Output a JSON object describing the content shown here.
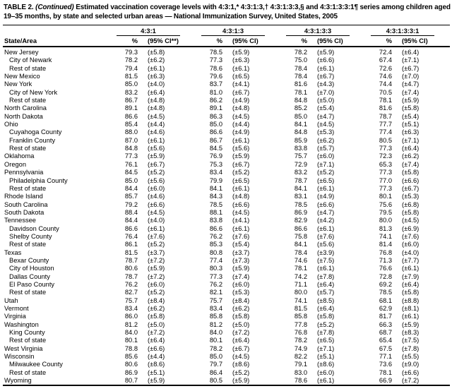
{
  "title": {
    "prefix": "TABLE 2.",
    "continued": "(Continued)",
    "rest": "Estimated vaccination coverage levels with 4:3:1,* 4:3:1:3,† 4:3:1:3:3,§ and 4:3:1:3:3:1¶ series among children aged 19–35 months, by state and selected urban areas — National Immunization Survey, United States, 2005"
  },
  "table": {
    "row_header": "State/Area",
    "groups": [
      {
        "label": "4:3:1",
        "pct": "%",
        "ci": "(95% CI**)"
      },
      {
        "label": "4:3:1:3",
        "pct": "%",
        "ci": "(95% CI)"
      },
      {
        "label": "4:3:1:3:3",
        "pct": "%",
        "ci": "(95% CI)"
      },
      {
        "label": "4:3:1:3:3:1",
        "pct": "%",
        "ci": "(95% CI)"
      }
    ],
    "rows": [
      {
        "area": "New Jersey",
        "indent": false,
        "values": [
          "79.3",
          "(±5.8)",
          "78.5",
          "(±5.9)",
          "78.2",
          "(±5.9)",
          "72.4",
          "(±6.4)"
        ]
      },
      {
        "area": "City of Newark",
        "indent": true,
        "values": [
          "78.2",
          "(±6.2)",
          "77.3",
          "(±6.3)",
          "75.0",
          "(±6.6)",
          "67.4",
          "(±7.1)"
        ]
      },
      {
        "area": "Rest of state",
        "indent": true,
        "values": [
          "79.4",
          "(±6.1)",
          "78.6",
          "(±6.1)",
          "78.4",
          "(±6.1)",
          "72.6",
          "(±6.7)"
        ]
      },
      {
        "area": "New Mexico",
        "indent": false,
        "values": [
          "81.5",
          "(±6.3)",
          "79.6",
          "(±6.5)",
          "78.4",
          "(±6.7)",
          "74.6",
          "(±7.0)"
        ]
      },
      {
        "area": "New York",
        "indent": false,
        "values": [
          "85.0",
          "(±4.0)",
          "83.7",
          "(±4.1)",
          "81.6",
          "(±4.3)",
          "74.4",
          "(±4.7)"
        ]
      },
      {
        "area": "City of New York",
        "indent": true,
        "values": [
          "83.2",
          "(±6.4)",
          "81.0",
          "(±6.7)",
          "78.1",
          "(±7.0)",
          "70.5",
          "(±7.4)"
        ]
      },
      {
        "area": "Rest of state",
        "indent": true,
        "values": [
          "86.7",
          "(±4.8)",
          "86.2",
          "(±4.9)",
          "84.8",
          "(±5.0)",
          "78.1",
          "(±5.9)"
        ]
      },
      {
        "area": "North Carolina",
        "indent": false,
        "values": [
          "89.1",
          "(±4.8)",
          "89.1",
          "(±4.8)",
          "85.2",
          "(±5.4)",
          "81.6",
          "(±5.8)"
        ]
      },
      {
        "area": "North Dakota",
        "indent": false,
        "values": [
          "86.6",
          "(±4.5)",
          "86.3",
          "(±4.5)",
          "85.0",
          "(±4.7)",
          "78.7",
          "(±5.4)"
        ]
      },
      {
        "area": "Ohio",
        "indent": false,
        "values": [
          "85.4",
          "(±4.4)",
          "85.0",
          "(±4.4)",
          "84.1",
          "(±4.5)",
          "77.7",
          "(±5.1)"
        ]
      },
      {
        "area": "Cuyahoga County",
        "indent": true,
        "values": [
          "88.0",
          "(±4.6)",
          "86.6",
          "(±4.9)",
          "84.8",
          "(±5.3)",
          "77.4",
          "(±6.3)"
        ]
      },
      {
        "area": "Franklin County",
        "indent": true,
        "values": [
          "87.0",
          "(±6.1)",
          "86.7",
          "(±6.1)",
          "85.9",
          "(±6.2)",
          "80.5",
          "(±7.1)"
        ]
      },
      {
        "area": "Rest of state",
        "indent": true,
        "values": [
          "84.8",
          "(±5.6)",
          "84.5",
          "(±5.6)",
          "83.8",
          "(±5.7)",
          "77.3",
          "(±6.4)"
        ]
      },
      {
        "area": "Oklahoma",
        "indent": false,
        "values": [
          "77.3",
          "(±5.9)",
          "76.9",
          "(±5.9)",
          "75.7",
          "(±6.0)",
          "72.3",
          "(±6.2)"
        ]
      },
      {
        "area": "Oregon",
        "indent": false,
        "values": [
          "76.1",
          "(±6.7)",
          "75.3",
          "(±6.7)",
          "72.9",
          "(±7.1)",
          "65.3",
          "(±7.4)"
        ]
      },
      {
        "area": "Pennsylvania",
        "indent": false,
        "values": [
          "84.5",
          "(±5.2)",
          "83.4",
          "(±5.2)",
          "83.2",
          "(±5.2)",
          "77.3",
          "(±5.8)"
        ]
      },
      {
        "area": "Philadelphia County",
        "indent": true,
        "values": [
          "85.0",
          "(±5.6)",
          "79.9",
          "(±6.5)",
          "78.7",
          "(±6.5)",
          "77.0",
          "(±6.6)"
        ]
      },
      {
        "area": "Rest of state",
        "indent": true,
        "values": [
          "84.4",
          "(±6.0)",
          "84.1",
          "(±6.1)",
          "84.1",
          "(±6.1)",
          "77.3",
          "(±6.7)"
        ]
      },
      {
        "area": "Rhode Island",
        "indent": false,
        "values": [
          "85.7",
          "(±4.6)",
          "84.3",
          "(±4.8)",
          "83.1",
          "(±4.9)",
          "80.1",
          "(±5.3)"
        ]
      },
      {
        "area": "South Carolina",
        "indent": false,
        "values": [
          "79.2",
          "(±6.6)",
          "78.5",
          "(±6.6)",
          "78.5",
          "(±6.6)",
          "75.6",
          "(±6.8)"
        ]
      },
      {
        "area": "South Dakota",
        "indent": false,
        "values": [
          "88.4",
          "(±4.5)",
          "88.1",
          "(±4.5)",
          "86.9",
          "(±4.7)",
          "79.5",
          "(±5.8)"
        ]
      },
      {
        "area": "Tennessee",
        "indent": false,
        "values": [
          "84.4",
          "(±4.0)",
          "83.8",
          "(±4.1)",
          "82.9",
          "(±4.2)",
          "80.0",
          "(±4.5)"
        ]
      },
      {
        "area": "Davidson County",
        "indent": true,
        "values": [
          "86.6",
          "(±6.1)",
          "86.6",
          "(±6.1)",
          "86.6",
          "(±6.1)",
          "81.3",
          "(±6.9)"
        ]
      },
      {
        "area": "Shelby County",
        "indent": true,
        "values": [
          "76.4",
          "(±7.6)",
          "76.2",
          "(±7.6)",
          "75.8",
          "(±7.6)",
          "74.1",
          "(±7.6)"
        ]
      },
      {
        "area": "Rest of state",
        "indent": true,
        "values": [
          "86.1",
          "(±5.2)",
          "85.3",
          "(±5.4)",
          "84.1",
          "(±5.6)",
          "81.4",
          "(±6.0)"
        ]
      },
      {
        "area": "Texas",
        "indent": false,
        "values": [
          "81.5",
          "(±3.7)",
          "80.8",
          "(±3.7)",
          "78.4",
          "(±3.9)",
          "76.8",
          "(±4.0)"
        ]
      },
      {
        "area": "Bexar County",
        "indent": true,
        "values": [
          "78.7",
          "(±7.2)",
          "77.4",
          "(±7.3)",
          "74.6",
          "(±7.5)",
          "71.3",
          "(±7.7)"
        ]
      },
      {
        "area": "City of Houston",
        "indent": true,
        "values": [
          "80.6",
          "(±5.9)",
          "80.3",
          "(±5.9)",
          "78.1",
          "(±6.1)",
          "76.6",
          "(±6.1)"
        ]
      },
      {
        "area": "Dallas County",
        "indent": true,
        "values": [
          "78.7",
          "(±7.2)",
          "77.3",
          "(±7.4)",
          "74.2",
          "(±7.8)",
          "72.8",
          "(±7.9)"
        ]
      },
      {
        "area": "El Paso County",
        "indent": true,
        "values": [
          "76.2",
          "(±6.0)",
          "76.2",
          "(±6.0)",
          "71.1",
          "(±6.4)",
          "69.2",
          "(±6.4)"
        ]
      },
      {
        "area": "Rest of state",
        "indent": true,
        "values": [
          "82.7",
          "(±5.2)",
          "82.1",
          "(±5.3)",
          "80.0",
          "(±5.7)",
          "78.5",
          "(±5.8)"
        ]
      },
      {
        "area": "Utah",
        "indent": false,
        "values": [
          "75.7",
          "(±8.4)",
          "75.7",
          "(±8.4)",
          "74.1",
          "(±8.5)",
          "68.1",
          "(±8.8)"
        ]
      },
      {
        "area": "Vermont",
        "indent": false,
        "values": [
          "83.4",
          "(±6.2)",
          "83.4",
          "(±6.2)",
          "81.5",
          "(±6.4)",
          "62.9",
          "(±8.1)"
        ]
      },
      {
        "area": "Virginia",
        "indent": false,
        "values": [
          "86.0",
          "(±5.8)",
          "85.8",
          "(±5.8)",
          "85.8",
          "(±5.8)",
          "81.7",
          "(±6.1)"
        ]
      },
      {
        "area": "Washington",
        "indent": false,
        "values": [
          "81.2",
          "(±5.0)",
          "81.2",
          "(±5.0)",
          "77.8",
          "(±5.2)",
          "66.3",
          "(±5.9)"
        ]
      },
      {
        "area": "King County",
        "indent": true,
        "values": [
          "84.0",
          "(±7.2)",
          "84.0",
          "(±7.2)",
          "76.8",
          "(±7.8)",
          "68.7",
          "(±8.3)"
        ]
      },
      {
        "area": "Rest of state",
        "indent": true,
        "values": [
          "80.1",
          "(±6.4)",
          "80.1",
          "(±6.4)",
          "78.2",
          "(±6.5)",
          "65.4",
          "(±7.5)"
        ]
      },
      {
        "area": "West Virginia",
        "indent": false,
        "values": [
          "78.8",
          "(±6.6)",
          "78.2",
          "(±6.7)",
          "74.9",
          "(±7.1)",
          "67.5",
          "(±7.8)"
        ]
      },
      {
        "area": "Wisconsin",
        "indent": false,
        "values": [
          "85.6",
          "(±4.4)",
          "85.0",
          "(±4.5)",
          "82.2",
          "(±5.1)",
          "77.1",
          "(±5.5)"
        ]
      },
      {
        "area": "Milwaukee County",
        "indent": true,
        "values": [
          "80.6",
          "(±8.6)",
          "79.7",
          "(±8.6)",
          "79.1",
          "(±8.6)",
          "73.6",
          "(±9.0)"
        ]
      },
      {
        "area": "Rest of state",
        "indent": true,
        "values": [
          "86.9",
          "(±5.1)",
          "86.4",
          "(±5.2)",
          "83.0",
          "(±6.0)",
          "78.1",
          "(±6.6)"
        ]
      },
      {
        "area": "Wyoming",
        "indent": false,
        "values": [
          "80.7",
          "(±5.9)",
          "80.5",
          "(±5.9)",
          "78.6",
          "(±6.1)",
          "66.9",
          "(±7.2)"
        ]
      }
    ]
  }
}
